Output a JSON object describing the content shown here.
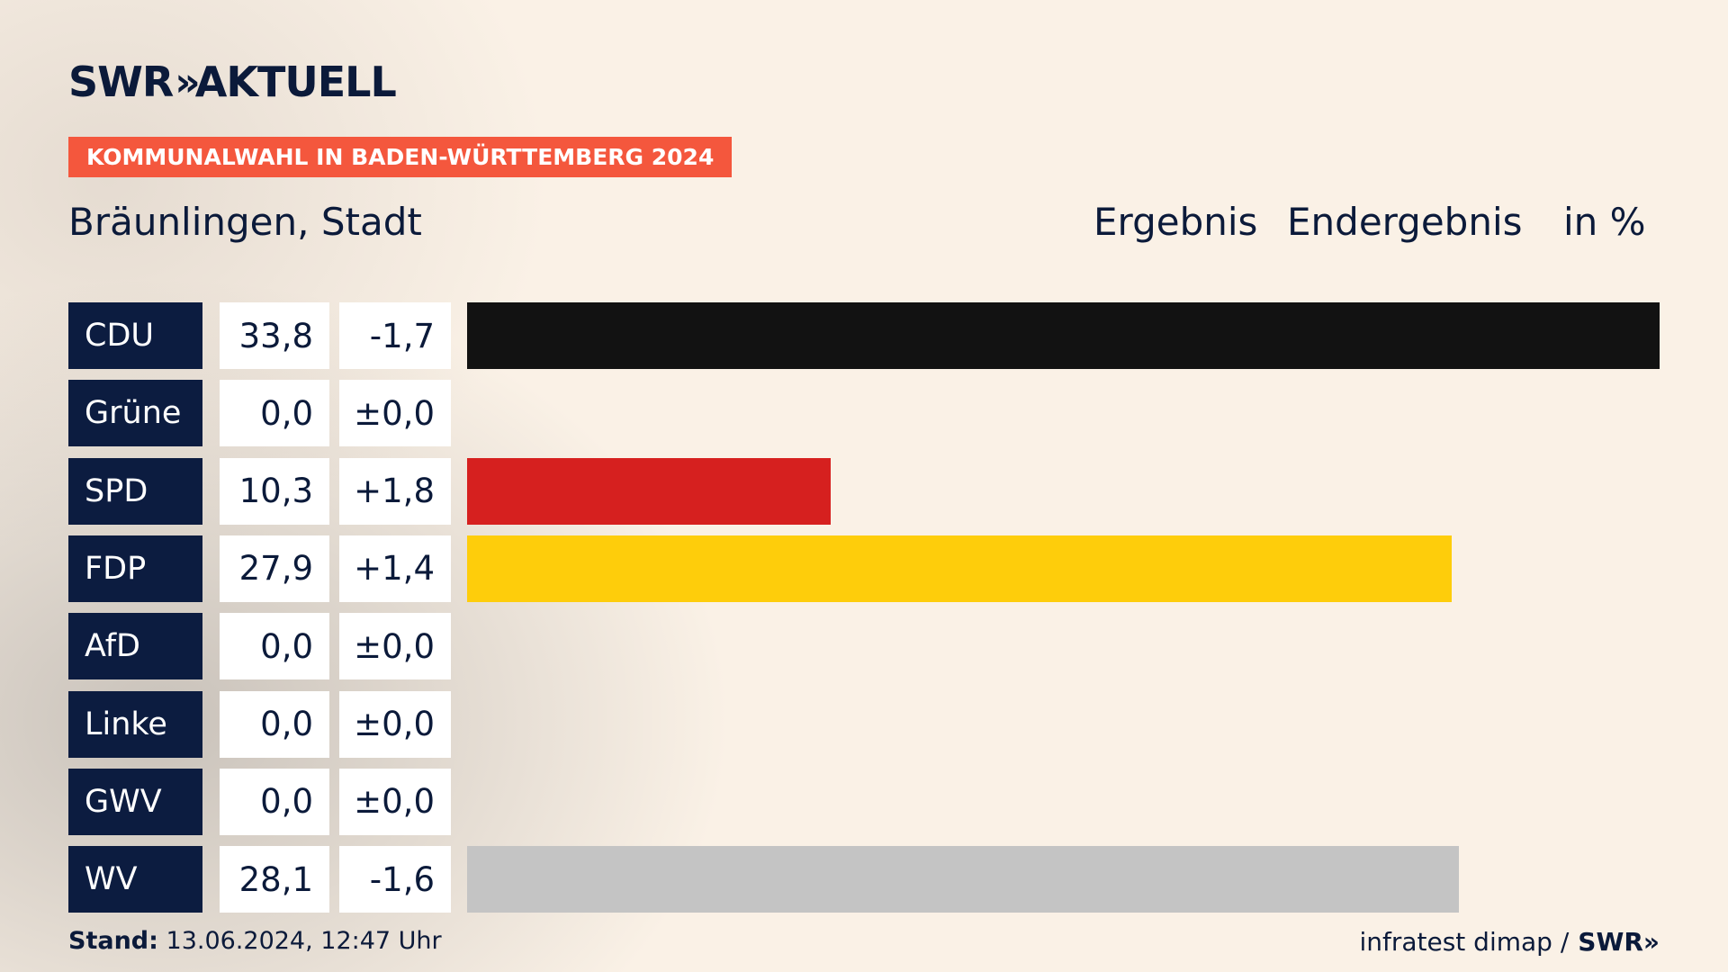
{
  "brand": {
    "logo_text": "SWR",
    "logo_chevrons": "»",
    "logo_suffix": "AKTUELL"
  },
  "banner": "KOMMUNALWAHL IN BADEN-WÜRTTEMBERG 2024",
  "headings": {
    "place": "Bräunlingen, Stadt",
    "result": "Ergebnis",
    "status": "Endergebnis",
    "unit": "in %"
  },
  "chart_data": {
    "type": "bar",
    "orientation": "horizontal",
    "categories": [
      "CDU",
      "Grüne",
      "SPD",
      "FDP",
      "AfD",
      "Linke",
      "GWV",
      "WV"
    ],
    "values": [
      33.8,
      0.0,
      10.3,
      27.9,
      0.0,
      0.0,
      0.0,
      28.1
    ],
    "value_labels": [
      "33,8",
      "0,0",
      "10,3",
      "27,9",
      "0,0",
      "0,0",
      "0,0",
      "28,1"
    ],
    "diff_labels": [
      "-1,7",
      "±0,0",
      "+1,8",
      "+1,4",
      "±0,0",
      "±0,0",
      "±0,0",
      "-1,6"
    ],
    "colors": [
      "#121212",
      "#46962b",
      "#d6201f",
      "#fecd0b",
      "#009ee0",
      "#be3075",
      "#4a90c8",
      "#c4c4c4"
    ],
    "xlim": [
      0,
      33.8
    ]
  },
  "footer": {
    "stand_label": "Stand:",
    "stand_value": "13.06.2024, 12:47 Uhr",
    "source": "infratest dimap /",
    "source_logo": "SWR",
    "source_logo_chevrons": "»"
  }
}
